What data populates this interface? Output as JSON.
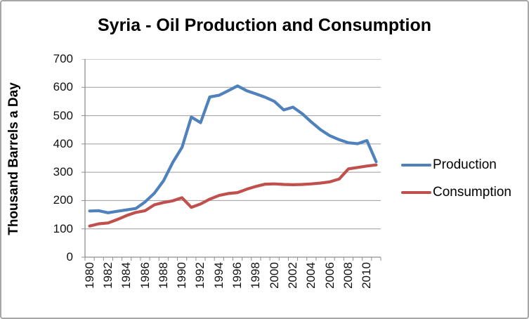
{
  "title": "Syria - Oil Production and Consumption",
  "y_axis": {
    "label": "Thousand Barrels a Day",
    "tick_labels": [
      "0",
      "100",
      "200",
      "300",
      "400",
      "500",
      "600",
      "700"
    ]
  },
  "x_axis": {
    "tick_labels": [
      "1980",
      "1982",
      "1984",
      "1986",
      "1988",
      "1990",
      "1992",
      "1994",
      "1996",
      "1998",
      "2000",
      "2002",
      "2004",
      "2006",
      "2008",
      "2010"
    ]
  },
  "legend": {
    "items": [
      {
        "label": "Production",
        "color": "#4F81BD"
      },
      {
        "label": "Consumption",
        "color": "#C0504D"
      }
    ]
  },
  "colors": {
    "grid": "#9c9c9c",
    "axis": "#8f8f8f",
    "production": "#4F81BD",
    "consumption": "#C0504D"
  },
  "chart_data": {
    "type": "line",
    "title": "Syria - Oil Production and Consumption",
    "xlabel": "",
    "ylabel": "Thousand Barrels a Day",
    "ylim": [
      0,
      700
    ],
    "y_tick_step": 100,
    "grid": true,
    "legend_position": "right",
    "x": [
      1980,
      1981,
      1982,
      1983,
      1984,
      1985,
      1986,
      1987,
      1988,
      1989,
      1990,
      1991,
      1992,
      1993,
      1994,
      1995,
      1996,
      1997,
      1998,
      1999,
      2000,
      2001,
      2002,
      2003,
      2004,
      2005,
      2006,
      2007,
      2008,
      2009,
      2010,
      2011
    ],
    "series": [
      {
        "name": "Production",
        "color": "#4F81BD",
        "values": [
          163,
          164,
          157,
          162,
          167,
          172,
          195,
          226,
          270,
          335,
          388,
          495,
          475,
          566,
          572,
          588,
          605,
          588,
          577,
          565,
          550,
          520,
          530,
          507,
          477,
          450,
          429,
          415,
          404,
          401,
          412,
          337
        ]
      },
      {
        "name": "Consumption",
        "color": "#C0504D",
        "values": [
          110,
          118,
          121,
          133,
          147,
          158,
          164,
          185,
          193,
          199,
          210,
          176,
          188,
          205,
          218,
          225,
          228,
          240,
          250,
          258,
          259,
          257,
          256,
          257,
          259,
          262,
          266,
          276,
          312,
          317,
          322,
          326
        ]
      }
    ]
  }
}
